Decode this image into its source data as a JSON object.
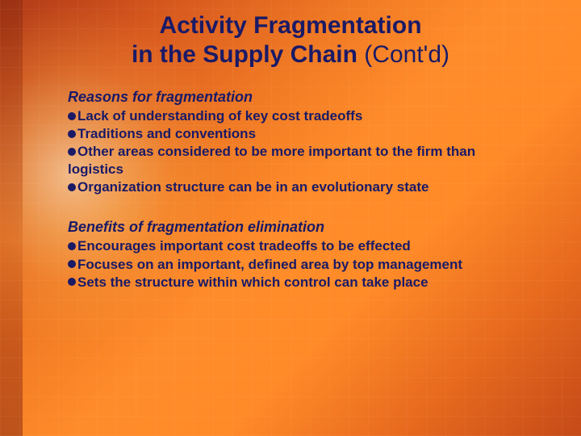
{
  "colors": {
    "text": "#1a1a66",
    "bullet": "#1a1a66",
    "bg_gradient_stops": [
      "#b03a18",
      "#d95a1e",
      "#f07a24",
      "#ff8c2a",
      "#ff8a28",
      "#e86a1e",
      "#c44a18"
    ],
    "glow_center": "rgba(255,255,220,0.55)"
  },
  "typography": {
    "title_fontsize": 30,
    "body_fontsize": 17,
    "section_head_fontsize": 18,
    "font_family": "Arial"
  },
  "title": {
    "line1": "Activity Fragmentation",
    "line2_bold": "in the Supply Chain",
    "line2_cont": " (Cont'd)"
  },
  "section1": {
    "heading": "Reasons for fragmentation",
    "bullets": [
      "Lack of understanding of key cost tradeoffs",
      "Traditions and conventions",
      "Other areas considered to be more important to the firm than logistics",
      "Organization structure can be in an evolutionary state"
    ]
  },
  "section2": {
    "heading": "Benefits of fragmentation elimination",
    "bullets": [
      "Encourages important cost tradeoffs to be effected",
      "Focuses on an important, defined area by top management",
      "Sets the structure within which control can take place"
    ]
  }
}
